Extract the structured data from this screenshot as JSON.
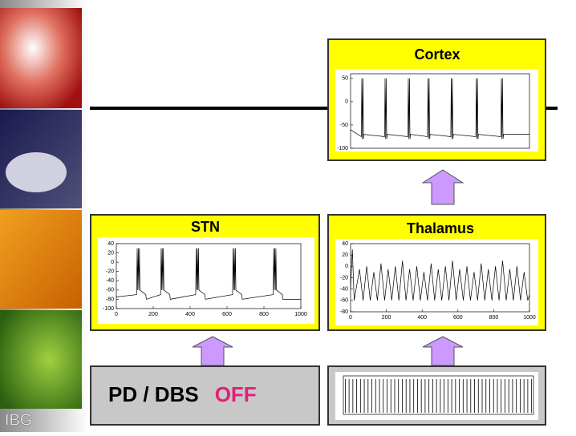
{
  "sidebar_label": "IBG",
  "panels": [
    {
      "title": "Cortex",
      "chart": {
        "type": "line",
        "x": [
          0,
          60,
          63,
          66,
          69,
          72,
          75,
          190,
          193,
          196,
          199,
          202,
          205,
          320,
          323,
          326,
          329,
          332,
          335,
          430,
          433,
          436,
          439,
          442,
          445,
          560,
          563,
          566,
          569,
          572,
          575,
          700,
          703,
          706,
          709,
          712,
          715,
          840,
          843,
          846,
          849,
          852,
          855,
          1000
        ],
        "values": [
          -60,
          -75,
          50,
          -80,
          50,
          -80,
          -70,
          -75,
          50,
          -80,
          50,
          -80,
          -70,
          -75,
          50,
          -80,
          50,
          -80,
          -70,
          -75,
          50,
          -80,
          50,
          -80,
          -70,
          -75,
          50,
          -80,
          50,
          -80,
          -70,
          -75,
          50,
          -80,
          50,
          -80,
          -70,
          -75,
          50,
          -80,
          50,
          -80,
          -70,
          -70
        ],
        "xlim": [
          0,
          1000
        ],
        "ylim": [
          -100,
          60
        ],
        "yticks": [
          50,
          0,
          -50,
          -100
        ]
      }
    },
    {
      "title": "STN",
      "chart": {
        "type": "line",
        "x": [
          0,
          110,
          113,
          116,
          119,
          122,
          125,
          128,
          160,
          162,
          240,
          243,
          246,
          249,
          252,
          255,
          258,
          290,
          292,
          430,
          433,
          436,
          439,
          442,
          445,
          448,
          480,
          482,
          630,
          633,
          636,
          639,
          642,
          645,
          648,
          680,
          682,
          850,
          853,
          856,
          859,
          862,
          865,
          868,
          900,
          902,
          1000
        ],
        "values": [
          -75,
          -70,
          30,
          -60,
          30,
          -60,
          30,
          -60,
          -70,
          -80,
          -70,
          30,
          -60,
          30,
          -60,
          30,
          -60,
          -70,
          -80,
          -70,
          30,
          -60,
          30,
          -60,
          30,
          -60,
          -70,
          -80,
          -70,
          30,
          -60,
          30,
          -60,
          30,
          -60,
          -70,
          -80,
          -70,
          30,
          -60,
          30,
          -60,
          30,
          -60,
          -70,
          -80,
          -80
        ],
        "xlim": [
          0,
          1000
        ],
        "ylim": [
          -100,
          40
        ],
        "xticks": [
          0,
          200,
          400,
          600,
          800,
          1000
        ],
        "yticks": [
          40,
          20,
          0,
          -20,
          -40,
          -60,
          -80,
          -100
        ]
      }
    },
    {
      "title": "Thalamus",
      "chart": {
        "type": "line",
        "x": [
          0,
          10,
          20,
          50,
          70,
          90,
          110,
          130,
          150,
          170,
          190,
          210,
          230,
          250,
          270,
          290,
          310,
          330,
          350,
          370,
          390,
          410,
          430,
          450,
          470,
          490,
          510,
          530,
          550,
          570,
          590,
          610,
          630,
          650,
          670,
          690,
          710,
          730,
          750,
          770,
          790,
          810,
          830,
          850,
          870,
          890,
          910,
          930,
          950,
          970,
          990,
          1000
        ],
        "values": [
          -40,
          30,
          -60,
          -5,
          -60,
          0,
          -60,
          -10,
          -60,
          5,
          -60,
          -5,
          -60,
          0,
          -60,
          10,
          -60,
          -5,
          -60,
          0,
          -60,
          -10,
          -60,
          5,
          -60,
          -5,
          -60,
          0,
          -60,
          10,
          -60,
          -5,
          -60,
          0,
          -60,
          -10,
          -60,
          5,
          -60,
          -5,
          -60,
          0,
          -60,
          10,
          -60,
          -5,
          -60,
          0,
          -60,
          -10,
          -60,
          -50
        ],
        "xlim": [
          0,
          1000
        ],
        "ylim": [
          -80,
          40
        ],
        "xticks": [
          0,
          200,
          400,
          600,
          800,
          1000
        ],
        "yticks": [
          40,
          20,
          0,
          -20,
          -40,
          -60,
          -80
        ]
      }
    }
  ],
  "stimulus": {
    "label": "PD / DBS",
    "state": "OFF",
    "chart": {
      "type": "raster",
      "x": [
        10,
        30,
        50,
        70,
        90,
        110,
        130,
        150,
        170,
        190,
        210,
        230,
        250,
        270,
        290,
        310,
        330,
        350,
        370,
        390,
        410,
        430,
        450,
        470,
        490,
        510,
        530,
        550,
        570,
        590,
        610,
        630,
        650,
        670,
        690,
        710,
        730,
        750,
        770,
        790,
        810,
        830,
        850,
        870,
        890,
        910,
        930,
        950,
        970,
        990
      ],
      "xlim": [
        0,
        1000
      ]
    }
  }
}
